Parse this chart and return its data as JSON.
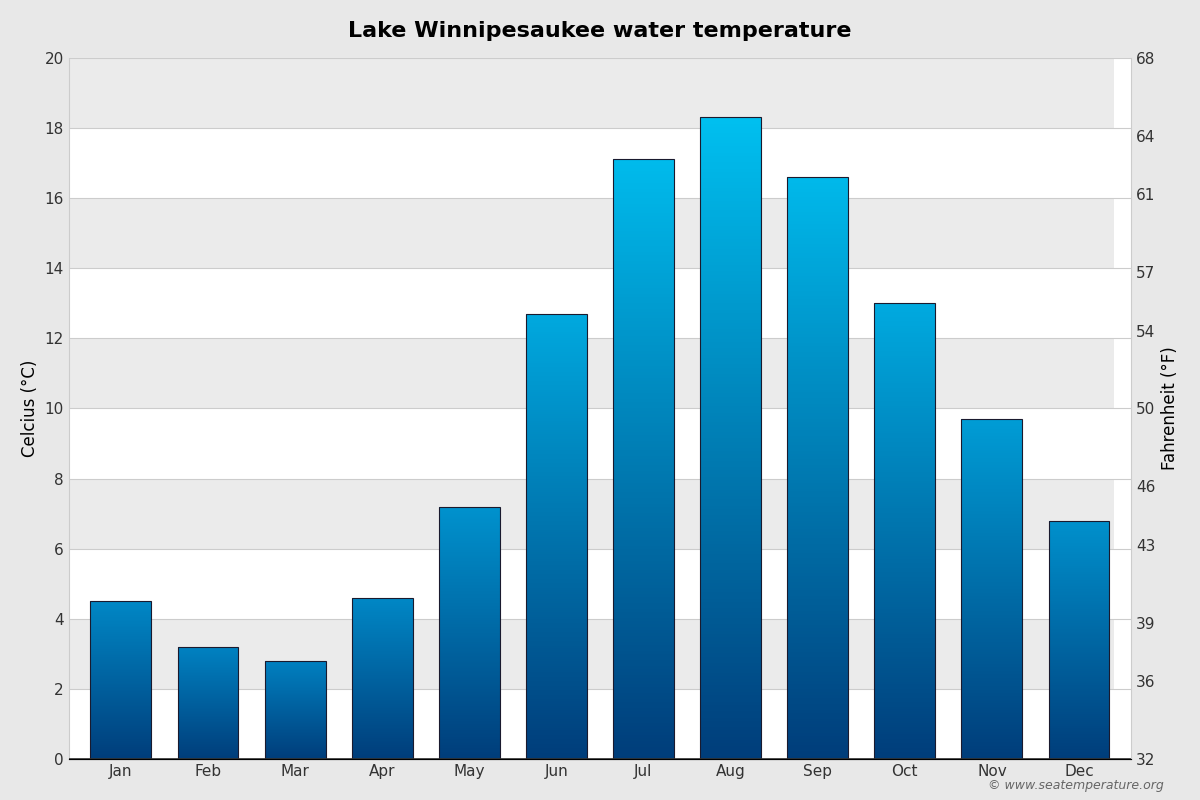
{
  "months": [
    "Jan",
    "Feb",
    "Mar",
    "Apr",
    "May",
    "Jun",
    "Jul",
    "Aug",
    "Sep",
    "Oct",
    "Nov",
    "Dec"
  ],
  "temps_c": [
    4.5,
    3.2,
    2.8,
    4.6,
    7.2,
    12.7,
    17.1,
    18.3,
    16.6,
    13.0,
    9.7,
    6.8
  ],
  "title": "Lake Winnipesaukee water temperature",
  "ylabel_left": "Celcius (°C)",
  "ylabel_right": "Fahrenheit (°F)",
  "ylim_c": [
    0,
    20
  ],
  "yticks_c": [
    0,
    2,
    4,
    6,
    8,
    10,
    12,
    14,
    16,
    18,
    20
  ],
  "yticks_f": [
    32,
    36,
    39,
    43,
    46,
    50,
    54,
    57,
    61,
    64,
    68
  ],
  "fig_background_color": "#e8e8e8",
  "plot_bg_white": "#ffffff",
  "plot_bg_gray": "#ebebeb",
  "bar_bottom_color": "#003d7a",
  "bar_top_color_warm": "#00c0f0",
  "bar_top_color_cool": "#0080c0",
  "bar_edge_color": "#1a1a2e",
  "watermark": "© www.seatemperature.org",
  "title_fontsize": 16,
  "axis_fontsize": 12,
  "tick_fontsize": 11,
  "bar_width": 0.7
}
